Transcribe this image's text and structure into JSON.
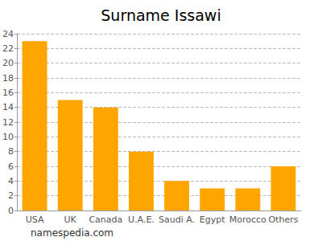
{
  "chart_data": {
    "type": "bar",
    "title": "Surname Issawi",
    "categories": [
      "USA",
      "UK",
      "Canada",
      "U.A.E.",
      "Saudi A.",
      "Egypt",
      "Morocco",
      "Others"
    ],
    "values": [
      23,
      15,
      14,
      8,
      4,
      3,
      3,
      6
    ],
    "color": "#ffa500",
    "ylim": [
      0,
      24
    ],
    "yticks": [
      0,
      2,
      4,
      6,
      8,
      10,
      12,
      14,
      16,
      18,
      20,
      22,
      24
    ],
    "grid": true,
    "annotation": "namespedia.com"
  }
}
